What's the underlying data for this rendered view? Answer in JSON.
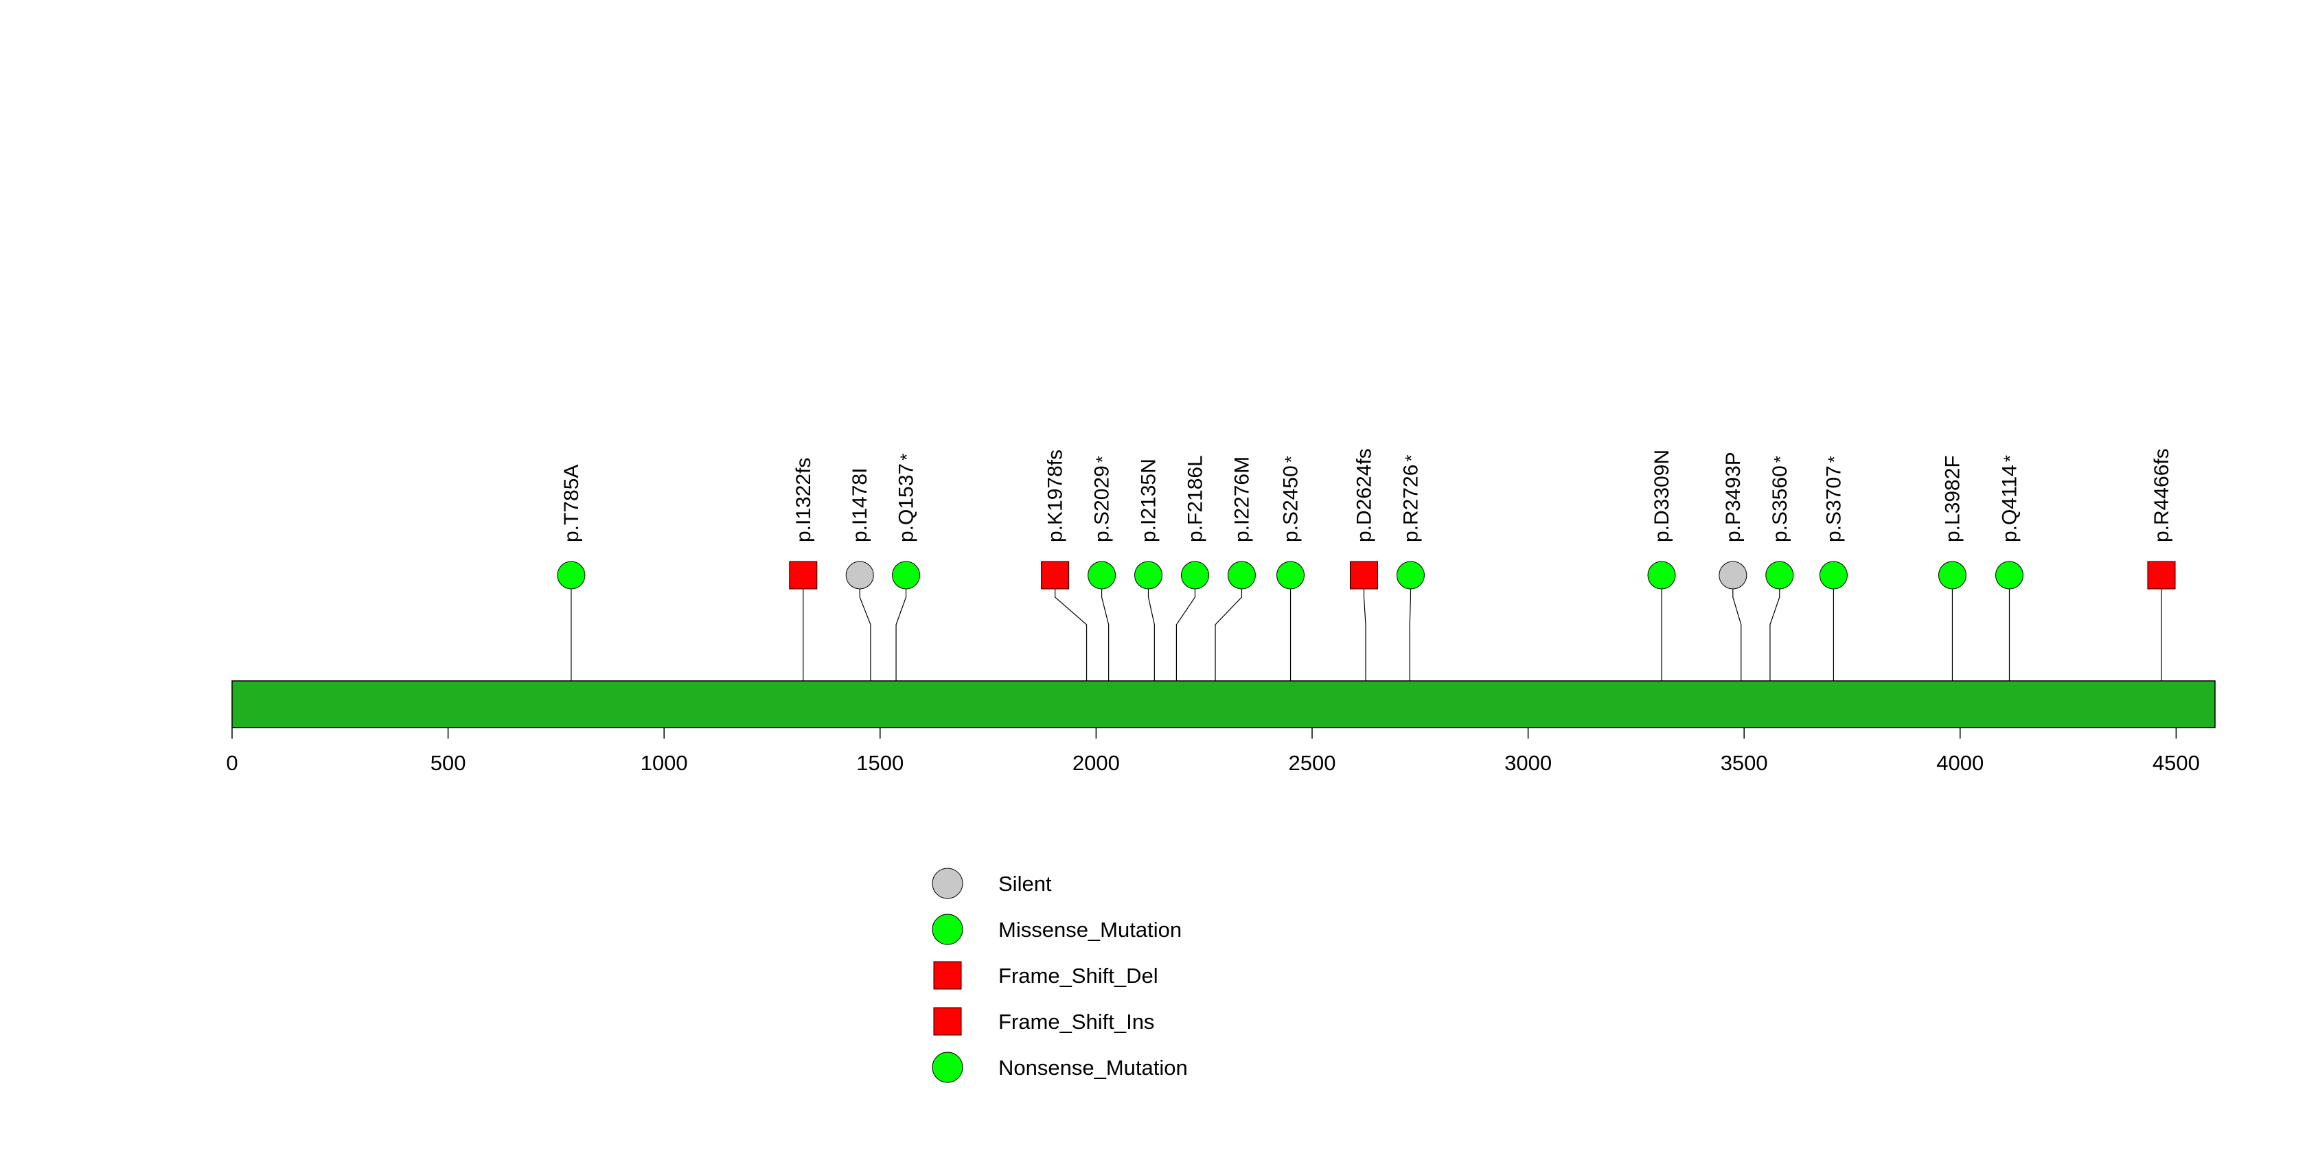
{
  "colors": {
    "protein_bar": "#1faf1f",
    "missense": "#00ff00",
    "nonsense": "#00ff00",
    "silent": "#c8c8c8",
    "frameshift": "#ff0000",
    "stick": "#000000"
  },
  "chart_data": {
    "type": "lollipop",
    "title": "",
    "protein_length": 4590,
    "x_range": [
      0,
      4590
    ],
    "ticks": [
      0,
      500,
      1000,
      1500,
      2000,
      2500,
      3000,
      3500,
      4000,
      4500
    ],
    "mutations": [
      {
        "label": "p.T785A",
        "position": 785,
        "display_position": 785,
        "type": "Missense_Mutation",
        "shape": "circle",
        "nonsense": false
      },
      {
        "label": "p.I1322fs",
        "position": 1322,
        "display_position": 1322,
        "type": "Frame_Shift",
        "shape": "square",
        "nonsense": false
      },
      {
        "label": "p.I1478I",
        "position": 1478,
        "display_position": 1453,
        "type": "Silent",
        "shape": "circle",
        "nonsense": false
      },
      {
        "label": "p.Q1537",
        "position": 1537,
        "display_position": 1560,
        "type": "Nonsense_Mutation",
        "shape": "circle",
        "nonsense": true
      },
      {
        "label": "p.K1978fs",
        "position": 1978,
        "display_position": 1905,
        "type": "Frame_Shift",
        "shape": "square",
        "nonsense": false
      },
      {
        "label": "p.S2029",
        "position": 2029,
        "display_position": 2013,
        "type": "Nonsense_Mutation",
        "shape": "circle",
        "nonsense": true
      },
      {
        "label": "p.I2135N",
        "position": 2135,
        "display_position": 2121,
        "type": "Missense_Mutation",
        "shape": "circle",
        "nonsense": false
      },
      {
        "label": "p.F2186L",
        "position": 2186,
        "display_position": 2229,
        "type": "Missense_Mutation",
        "shape": "circle",
        "nonsense": false
      },
      {
        "label": "p.I2276M",
        "position": 2276,
        "display_position": 2337,
        "type": "Missense_Mutation",
        "shape": "circle",
        "nonsense": false
      },
      {
        "label": "p.S2450",
        "position": 2450,
        "display_position": 2450,
        "type": "Nonsense_Mutation",
        "shape": "circle",
        "nonsense": true
      },
      {
        "label": "p.D2624fs",
        "position": 2624,
        "display_position": 2620,
        "type": "Frame_Shift",
        "shape": "square",
        "nonsense": false
      },
      {
        "label": "p.R2726",
        "position": 2726,
        "display_position": 2728,
        "type": "Nonsense_Mutation",
        "shape": "circle",
        "nonsense": true
      },
      {
        "label": "p.D3309N",
        "position": 3309,
        "display_position": 3309,
        "type": "Missense_Mutation",
        "shape": "circle",
        "nonsense": false
      },
      {
        "label": "p.P3493P",
        "position": 3493,
        "display_position": 3474,
        "type": "Silent",
        "shape": "circle",
        "nonsense": false
      },
      {
        "label": "p.S3560",
        "position": 3560,
        "display_position": 3582,
        "type": "Nonsense_Mutation",
        "shape": "circle",
        "nonsense": true
      },
      {
        "label": "p.S3707",
        "position": 3707,
        "display_position": 3707,
        "type": "Nonsense_Mutation",
        "shape": "circle",
        "nonsense": true
      },
      {
        "label": "p.L3982F",
        "position": 3982,
        "display_position": 3982,
        "type": "Missense_Mutation",
        "shape": "circle",
        "nonsense": false
      },
      {
        "label": "p.Q4114",
        "position": 4114,
        "display_position": 4114,
        "type": "Nonsense_Mutation",
        "shape": "circle",
        "nonsense": true
      },
      {
        "label": "p.R4466fs",
        "position": 4466,
        "display_position": 4466,
        "type": "Frame_Shift",
        "shape": "square",
        "nonsense": false
      }
    ],
    "nonsense_marker": "*",
    "legend": [
      {
        "label": "Silent",
        "shape": "circle",
        "color": "#c8c8c8"
      },
      {
        "label": "Missense_Mutation",
        "shape": "circle",
        "color": "#00ff00"
      },
      {
        "label": "Frame_Shift_Del",
        "shape": "square",
        "color": "#ff0000"
      },
      {
        "label": "Frame_Shift_Ins",
        "shape": "square",
        "color": "#ff0000"
      },
      {
        "label": "Nonsense_Mutation",
        "shape": "circle",
        "color": "#00ff00"
      }
    ]
  }
}
